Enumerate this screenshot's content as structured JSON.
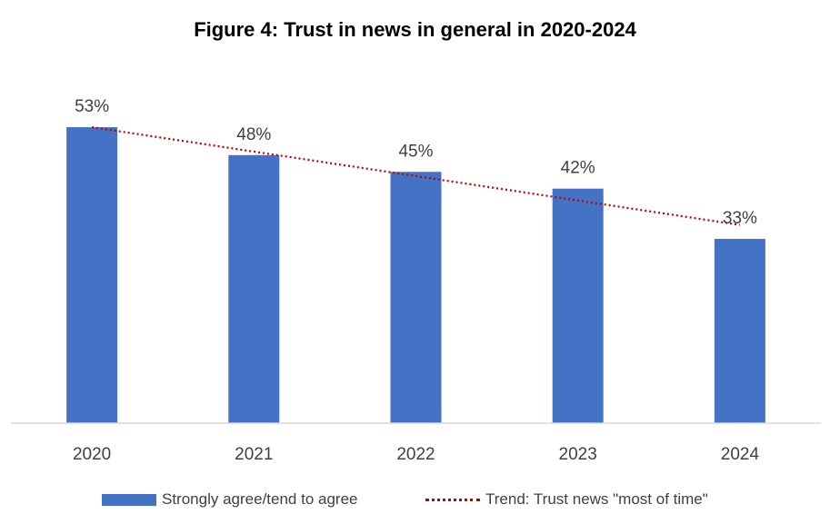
{
  "chart_data": {
    "type": "bar",
    "title": "Figure 4: Trust in news in general in 2020-2024",
    "categories": [
      "2020",
      "2021",
      "2022",
      "2023",
      "2024"
    ],
    "series": [
      {
        "name": "Strongly agree/tend to agree",
        "values": [
          53,
          48,
          45,
          42,
          33
        ],
        "labels": [
          "53%",
          "48%",
          "45%",
          "42%",
          "33%"
        ],
        "color": "#4472c4"
      }
    ],
    "trend": {
      "name": "Trend: Trust news \"most of time\"",
      "style": "dotted",
      "color": "#c00000",
      "start_value": 53,
      "end_value": 35.5
    },
    "xlabel": "",
    "ylabel": "",
    "ylim": [
      0,
      55
    ],
    "grid": false,
    "legend": "bottom"
  }
}
